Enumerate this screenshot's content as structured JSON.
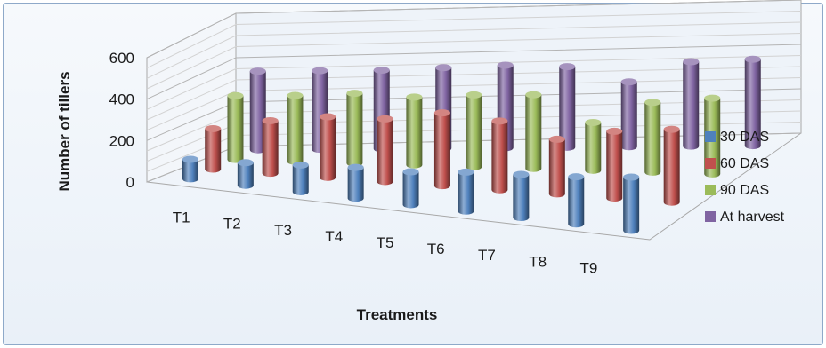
{
  "chart_data": {
    "type": "bar",
    "style": "3d-cylinder",
    "title": "",
    "xlabel": "Treatments",
    "ylabel": "Number of tillers",
    "ylim": [
      0,
      600
    ],
    "yticks": [
      0,
      200,
      400,
      600
    ],
    "grid": true,
    "legend_position": "right",
    "categories": [
      "T1",
      "T2",
      "T3",
      "T4",
      "T5",
      "T6",
      "T7",
      "T8",
      "T9"
    ],
    "series": [
      {
        "name": "30 DAS",
        "color": "#4f81bd",
        "values": [
          95,
          110,
          130,
          150,
          160,
          190,
          210,
          230,
          260
        ]
      },
      {
        "name": "60 DAS",
        "color": "#c0504d",
        "values": [
          200,
          260,
          300,
          310,
          360,
          340,
          270,
          330,
          360
        ]
      },
      {
        "name": "90 DAS",
        "color": "#9bbb59",
        "values": [
          320,
          330,
          350,
          340,
          360,
          370,
          240,
          350,
          380
        ]
      },
      {
        "name": "At harvest",
        "color": "#8064a2",
        "values": [
          400,
          400,
          400,
          410,
          420,
          410,
          330,
          430,
          440
        ]
      }
    ]
  }
}
